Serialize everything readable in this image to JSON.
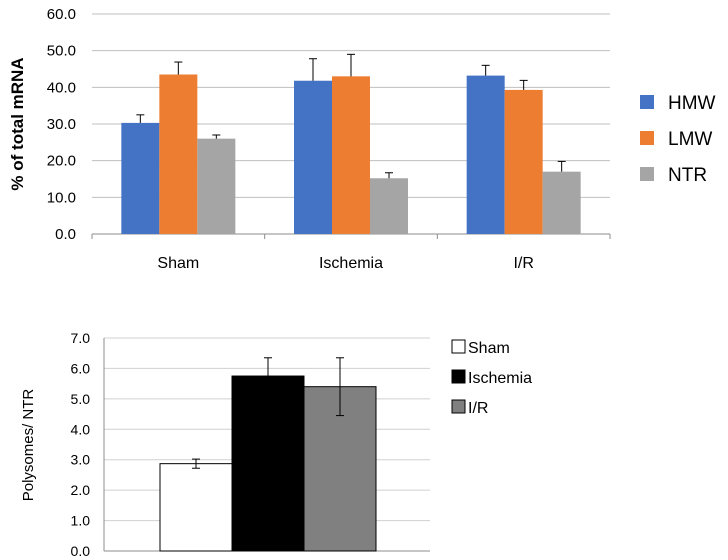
{
  "chart_data": [
    {
      "type": "bar",
      "title": "",
      "xlabel": "",
      "ylabel": "% of total mRNA",
      "ylim": [
        0,
        60
      ],
      "yticks": [
        "0.0",
        "10.0",
        "20.0",
        "30.0",
        "40.0",
        "50.0",
        "60.0"
      ],
      "categories": [
        "Sham",
        "Ischemia",
        "I/R"
      ],
      "grid": true,
      "legend_position": "right",
      "series": [
        {
          "name": "HMW",
          "color": "#4472C4",
          "values": [
            30.3,
            41.8,
            43.2
          ],
          "errors": [
            2.2,
            6.0,
            2.8
          ]
        },
        {
          "name": "LMW",
          "color": "#ED7D31",
          "values": [
            43.5,
            43.0,
            39.3
          ],
          "errors": [
            3.4,
            6.0,
            2.6
          ]
        },
        {
          "name": "NTR",
          "color": "#A5A5A5",
          "values": [
            26.0,
            15.2,
            17.0
          ],
          "errors": [
            1.0,
            1.5,
            2.8
          ]
        }
      ]
    },
    {
      "type": "bar",
      "title": "",
      "xlabel": "",
      "ylabel": "Polysomes/ NTR",
      "ylim": [
        0,
        7
      ],
      "yticks": [
        "0.0",
        "1.0",
        "2.0",
        "3.0",
        "4.0",
        "5.0",
        "6.0",
        "7.0"
      ],
      "categories": [
        "Sham",
        "Ischemia",
        "I/R"
      ],
      "grid": true,
      "legend_position": "right",
      "series": [
        {
          "name": "Sham",
          "color": "#FFFFFF",
          "value": 2.87,
          "error": 0.15
        },
        {
          "name": "Ischemia",
          "color": "#000000",
          "value": 5.75,
          "error": 0.6
        },
        {
          "name": "I/R",
          "color": "#808080",
          "value": 5.4,
          "error": 0.95
        }
      ]
    }
  ]
}
